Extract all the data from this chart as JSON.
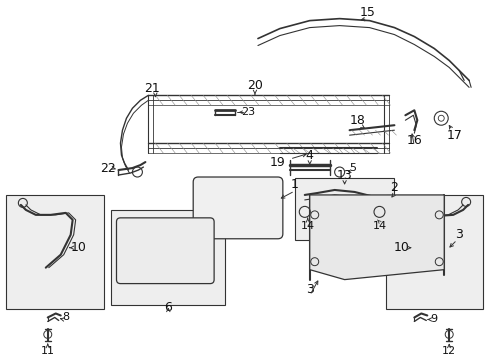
{
  "bg_color": "#ffffff",
  "fig_width": 4.89,
  "fig_height": 3.6,
  "dpi": 100,
  "line_color": "#333333",
  "label_color": "#111111",
  "box_fill": "#eeeeee",
  "box_edge": "#333333"
}
